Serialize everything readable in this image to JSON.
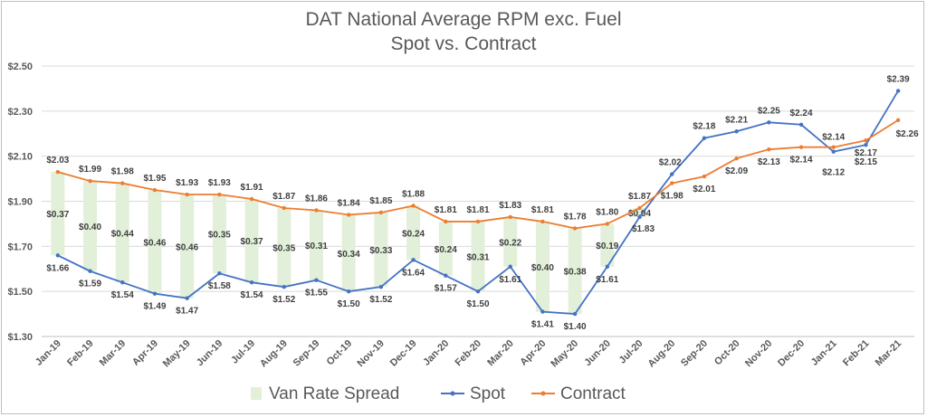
{
  "title_line1": "DAT National Average RPM exc. Fuel",
  "title_line2": "Spot vs. Contract",
  "chart_data": {
    "type": "line",
    "title": "DAT National Average RPM exc. Fuel Spot vs. Contract",
    "categories": [
      "Jan-19",
      "Feb-19",
      "Mar-19",
      "Apr-19",
      "May-19",
      "Jun-19",
      "Jul-19",
      "Aug-19",
      "Sep-19",
      "Oct-19",
      "Nov-19",
      "Dec-19",
      "Jan-20",
      "Feb-20",
      "Mar-20",
      "Apr-20",
      "May-20",
      "Jun-20",
      "Jul-20",
      "Aug-20",
      "Sep-20",
      "Oct-20",
      "Nov-20",
      "Dec-20",
      "Jan-21",
      "Feb-21",
      "Mar-21"
    ],
    "ylim": [
      1.3,
      2.5
    ],
    "yticks": [
      "$1.30",
      "$1.50",
      "$1.70",
      "$1.90",
      "$2.10",
      "$2.30",
      "$2.50"
    ],
    "ytick_values": [
      1.3,
      1.5,
      1.7,
      1.9,
      2.1,
      2.3,
      2.5
    ],
    "grid": true,
    "legend_position": "bottom",
    "series": [
      {
        "name": "Spot",
        "color": "#4472c4",
        "values": [
          1.66,
          1.59,
          1.54,
          1.49,
          1.47,
          1.58,
          1.54,
          1.52,
          1.55,
          1.5,
          1.52,
          1.64,
          1.57,
          1.5,
          1.61,
          1.41,
          1.4,
          1.61,
          1.83,
          2.02,
          2.18,
          2.21,
          2.25,
          2.24,
          2.12,
          2.15,
          2.39
        ],
        "labels": [
          "$1.66",
          "$1.59",
          "$1.54",
          "$1.49",
          "$1.47",
          "$1.58",
          "$1.54",
          "$1.52",
          "$1.55",
          "$1.50",
          "$1.52",
          "$1.64",
          "$1.57",
          "$1.50",
          "$1.61",
          "$1.41",
          "$1.40",
          "$1.61",
          "$1.83",
          "$2.02",
          "$2.18",
          "$2.21",
          "$2.25",
          "$2.24",
          "$2.12",
          "$2.15",
          "$2.39"
        ]
      },
      {
        "name": "Contract",
        "color": "#ed7d31",
        "values": [
          2.03,
          1.99,
          1.98,
          1.95,
          1.93,
          1.93,
          1.91,
          1.87,
          1.86,
          1.84,
          1.85,
          1.88,
          1.81,
          1.81,
          1.83,
          1.81,
          1.78,
          1.8,
          1.87,
          1.98,
          2.01,
          2.09,
          2.13,
          2.14,
          2.14,
          2.17,
          2.26
        ],
        "labels": [
          "$2.03",
          "$1.99",
          "$1.98",
          "$1.95",
          "$1.93",
          "$1.93",
          "$1.91",
          "$1.87",
          "$1.86",
          "$1.84",
          "$1.85",
          "$1.88",
          "$1.81",
          "$1.81",
          "$1.83",
          "$1.81",
          "$1.78",
          "$1.80",
          "$1.87",
          "$1.98",
          "$2.01",
          "$2.09",
          "$2.13",
          "$2.14",
          "$2.14",
          "$2.17",
          "$2.26"
        ]
      }
    ],
    "spread": {
      "name": "Van Rate Spread",
      "color": "#e2efd9",
      "values": [
        0.37,
        0.4,
        0.44,
        0.46,
        0.46,
        0.35,
        0.37,
        0.35,
        0.31,
        0.34,
        0.33,
        0.24,
        0.24,
        0.31,
        0.22,
        0.4,
        0.38,
        0.19,
        0.04
      ],
      "labels": [
        "$0.37",
        "$0.40",
        "$0.44",
        "$0.46",
        "$0.46",
        "$0.35",
        "$0.37",
        "$0.35",
        "$0.31",
        "$0.34",
        "$0.33",
        "$0.24",
        "$0.24",
        "$0.31",
        "$0.22",
        "$0.40",
        "$0.38",
        "$0.19",
        "$0.04"
      ]
    },
    "legend": [
      {
        "name": "Van Rate Spread",
        "type": "bar",
        "color": "#e2efd9"
      },
      {
        "name": "Spot",
        "type": "line",
        "color": "#4472c4"
      },
      {
        "name": "Contract",
        "type": "line",
        "color": "#ed7d31"
      }
    ]
  }
}
